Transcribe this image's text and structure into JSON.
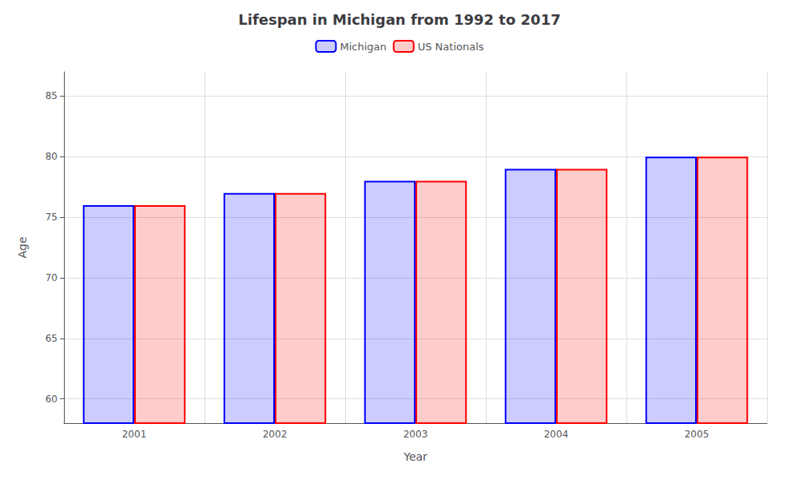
{
  "chart_data": {
    "type": "bar",
    "title": "Lifespan in Michigan from 1992 to 2017",
    "x_label": "Year",
    "y_label": "Age",
    "categories": [
      "2001",
      "2002",
      "2003",
      "2004",
      "2005"
    ],
    "series": [
      {
        "name": "Michigan",
        "color": "#0000ff",
        "values": [
          76,
          77,
          78,
          79,
          80
        ]
      },
      {
        "name": "US Nationals",
        "color": "#ff0000",
        "values": [
          76,
          77,
          78,
          79,
          80
        ]
      }
    ],
    "ylim": [
      58,
      87
    ],
    "yticks": [
      60,
      65,
      70,
      75,
      80,
      85
    ],
    "grid": true,
    "legend": "top"
  }
}
